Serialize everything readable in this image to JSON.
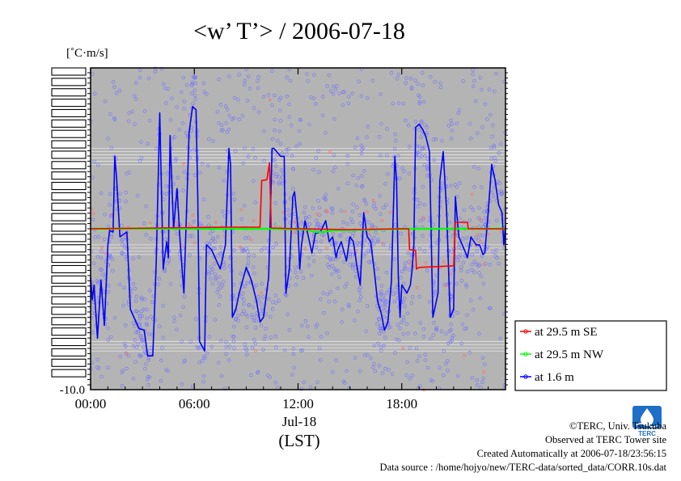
{
  "chart_data": {
    "type": "line",
    "title": "<w’ T’> / 2006-07-18",
    "ylabel": "[˚C·m/s]",
    "xlabel": "(LST)",
    "date_label": "Jul-18",
    "x_unit": "hour",
    "xlim": [
      0,
      24
    ],
    "x_ticks": [
      0,
      6,
      12,
      18
    ],
    "x_tick_labels": [
      "00:00",
      "06:00",
      "12:00",
      "18:00"
    ],
    "ylim": [
      -10.0,
      10.0
    ],
    "y_tick_label": "-10.0",
    "y_scale_note": "y tick labels are overprinted and illegible except the bottom one",
    "legend_position": "bottom-right outside plot",
    "background": "#b4b4b4",
    "series": [
      {
        "name": "at 29.5 m SE",
        "color": "#ff0000",
        "line_points": [
          [
            0.0,
            0.0
          ],
          [
            4.0,
            0.05
          ],
          [
            8.0,
            0.1
          ],
          [
            9.8,
            0.1
          ],
          [
            9.9,
            3.0
          ],
          [
            10.2,
            3.05
          ],
          [
            10.35,
            4.1
          ],
          [
            10.45,
            0.05
          ],
          [
            12.0,
            0.0
          ],
          [
            15.0,
            -0.05
          ],
          [
            18.0,
            0.0
          ],
          [
            18.4,
            0.0
          ],
          [
            18.45,
            -1.3
          ],
          [
            18.8,
            -1.35
          ],
          [
            18.85,
            -2.5
          ],
          [
            19.0,
            -2.4
          ],
          [
            21.0,
            -2.3
          ],
          [
            21.1,
            0.4
          ],
          [
            21.8,
            0.4
          ],
          [
            21.85,
            0.0
          ],
          [
            24.0,
            0.0
          ]
        ]
      },
      {
        "name": "at 29.5 m NW",
        "color": "#00ff00",
        "line_points": [
          [
            0.0,
            0.0
          ],
          [
            9.8,
            0.0
          ],
          [
            10.2,
            0.0
          ],
          [
            12.5,
            -0.05
          ],
          [
            13.0,
            -0.2
          ],
          [
            13.5,
            -0.2
          ],
          [
            14.0,
            -0.1
          ],
          [
            18.4,
            0.0
          ],
          [
            24.0,
            0.0
          ]
        ]
      },
      {
        "name": "at 1.6 m",
        "color": "#0000ff",
        "line_points": [
          [
            0.0,
            -3.0
          ],
          [
            0.1,
            -4.4
          ],
          [
            0.2,
            -3.5
          ],
          [
            0.4,
            -6.8
          ],
          [
            0.6,
            -3.2
          ],
          [
            0.8,
            -6.0
          ],
          [
            1.0,
            -1.0
          ],
          [
            1.1,
            -0.1
          ],
          [
            1.3,
            -0.2
          ],
          [
            1.4,
            4.5
          ],
          [
            1.5,
            3.2
          ],
          [
            1.7,
            -0.5
          ],
          [
            2.1,
            -0.2
          ],
          [
            2.3,
            -5.0
          ],
          [
            2.8,
            -6.2
          ],
          [
            3.1,
            -6.3
          ],
          [
            3.3,
            -7.9
          ],
          [
            3.6,
            -7.9
          ],
          [
            3.7,
            -5.0
          ],
          [
            3.8,
            -2.0
          ],
          [
            4.0,
            7.2
          ],
          [
            4.2,
            -2.5
          ],
          [
            4.4,
            -0.8
          ],
          [
            4.5,
            -1.8
          ],
          [
            4.6,
            5.8
          ],
          [
            4.8,
            0.0
          ],
          [
            5.0,
            2.5
          ],
          [
            5.2,
            -1.2
          ],
          [
            5.4,
            -4.0
          ],
          [
            5.5,
            -0.5
          ],
          [
            5.7,
            6.0
          ],
          [
            5.9,
            7.6
          ],
          [
            6.1,
            7.4
          ],
          [
            6.2,
            2.0
          ],
          [
            6.3,
            -7.0
          ],
          [
            6.6,
            -7.6
          ],
          [
            6.7,
            -1.0
          ],
          [
            7.0,
            -1.3
          ],
          [
            7.5,
            -2.5
          ],
          [
            7.8,
            -1.0
          ],
          [
            8.0,
            5.0
          ],
          [
            8.1,
            4.0
          ],
          [
            8.2,
            -5.5
          ],
          [
            8.4,
            -5.0
          ],
          [
            8.6,
            -4.0
          ],
          [
            8.8,
            -3.2
          ],
          [
            9.0,
            -2.4
          ],
          [
            9.3,
            -3.2
          ],
          [
            9.6,
            -4.5
          ],
          [
            9.8,
            -5.8
          ],
          [
            10.0,
            -5.5
          ],
          [
            10.3,
            -3.0
          ],
          [
            10.5,
            5.0
          ],
          [
            10.6,
            5.0
          ],
          [
            11.0,
            4.5
          ],
          [
            11.2,
            4.5
          ],
          [
            11.3,
            -4.0
          ],
          [
            11.5,
            -2.5
          ],
          [
            11.7,
            2.0
          ],
          [
            11.8,
            2.3
          ],
          [
            12.0,
            0.0
          ],
          [
            12.1,
            -2.5
          ],
          [
            12.2,
            -1.0
          ],
          [
            12.4,
            0.5
          ],
          [
            12.6,
            -0.5
          ],
          [
            12.8,
            -1.5
          ],
          [
            13.0,
            -0.3
          ],
          [
            13.3,
            -0.2
          ],
          [
            13.6,
            0.5
          ],
          [
            13.8,
            -0.8
          ],
          [
            14.0,
            -0.5
          ],
          [
            14.2,
            -1.8
          ],
          [
            14.3,
            -1.3
          ],
          [
            14.5,
            -0.8
          ],
          [
            14.6,
            -1.2
          ],
          [
            14.8,
            -2.0
          ],
          [
            15.0,
            -0.5
          ],
          [
            15.2,
            -0.8
          ],
          [
            15.4,
            -2.3
          ],
          [
            15.6,
            -3.5
          ],
          [
            15.8,
            1.0
          ],
          [
            16.0,
            -0.5
          ],
          [
            16.2,
            -0.8
          ],
          [
            16.4,
            -2.5
          ],
          [
            16.6,
            -4.5
          ],
          [
            16.8,
            -5.2
          ],
          [
            17.0,
            -6.3
          ],
          [
            17.2,
            -5.8
          ],
          [
            17.4,
            -3.3
          ],
          [
            17.6,
            4.5
          ],
          [
            17.7,
            3.0
          ],
          [
            17.8,
            -3.0
          ],
          [
            17.9,
            -5.5
          ],
          [
            18.0,
            -3.5
          ],
          [
            18.3,
            -4.0
          ],
          [
            18.5,
            -3.5
          ],
          [
            18.6,
            -2.5
          ],
          [
            18.7,
            -1.0
          ],
          [
            18.8,
            6.3
          ],
          [
            19.0,
            6.5
          ],
          [
            19.2,
            6.2
          ],
          [
            19.4,
            5.7
          ],
          [
            19.6,
            4.8
          ],
          [
            19.8,
            -5.5
          ],
          [
            20.0,
            -4.5
          ],
          [
            20.1,
            -4.0
          ],
          [
            20.2,
            3.0
          ],
          [
            20.4,
            4.8
          ],
          [
            20.6,
            1.0
          ],
          [
            20.8,
            -5.5
          ],
          [
            21.0,
            -5.0
          ],
          [
            21.1,
            2.0
          ],
          [
            21.3,
            -0.5
          ],
          [
            21.5,
            -1.0
          ],
          [
            21.7,
            -1.5
          ],
          [
            21.8,
            -1.8
          ],
          [
            22.0,
            -0.5
          ],
          [
            22.3,
            -1.0
          ],
          [
            22.5,
            -1.0
          ],
          [
            22.7,
            -1.6
          ],
          [
            22.8,
            -1.5
          ],
          [
            23.0,
            1.0
          ],
          [
            23.2,
            4.0
          ],
          [
            23.4,
            3.0
          ],
          [
            23.6,
            1.5
          ],
          [
            23.8,
            1.0
          ],
          [
            23.9,
            -1.0
          ],
          [
            24.0,
            0.2
          ]
        ]
      }
    ],
    "reference_lines_y": [
      5.0,
      4.8,
      4.6,
      4.4,
      4.2,
      4.0,
      -1.0,
      -1.2,
      -1.4,
      -1.6,
      -7.0,
      -7.2,
      -7.4,
      -7.6
    ]
  },
  "credits": {
    "copyright": "©TERC, Univ. Tsukuba",
    "observed": "Observed at TERC Tower site",
    "created": "Created Automatically at 2006-07-18/23:56:15",
    "source": "Data source : /home/hojyo/new/TERC-data/sorted_data/CORR.10s.dat"
  },
  "logo": {
    "text": "TERC",
    "color": "#1f6ec8"
  }
}
